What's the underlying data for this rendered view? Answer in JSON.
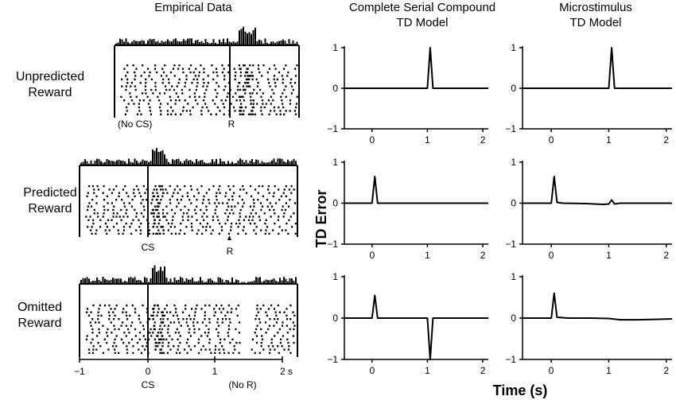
{
  "headers": {
    "empirical": "Empirical Data",
    "csc_line1": "Complete Serial Compound",
    "csc_line2": "TD Model",
    "micro_line1": "Microstimulus",
    "micro_line2": "TD Model"
  },
  "row_labels": [
    {
      "line1": "Unpredicted",
      "line2": "Reward"
    },
    {
      "line1": "Predicted",
      "line2": "Reward"
    },
    {
      "line1": "Omitted",
      "line2": "Reward"
    }
  ],
  "raster_markers": {
    "row1": {
      "left": "(No CS)",
      "right": "R"
    },
    "row2": {
      "left": "CS",
      "right": "R"
    },
    "row3": {
      "left": "CS",
      "right": "(No R)"
    }
  },
  "empirical_axis_ticks": [
    "−1",
    "0",
    "1",
    "2 s"
  ],
  "ylabel": "TD Error",
  "xlabel": "Time (s)",
  "chart_data": [
    {
      "type": "line",
      "title": "",
      "panel": "CSC unpredicted reward",
      "xlabel": "",
      "ylabel": "",
      "xlim": [
        -0.5,
        2.1
      ],
      "ylim": [
        -1,
        1
      ],
      "xticks": [
        "0",
        "1",
        "2"
      ],
      "yticks": [
        "1",
        "0",
        "−1"
      ],
      "grid": false,
      "x": [
        -0.5,
        1.0,
        1.05,
        1.1,
        2.1
      ],
      "y": [
        0,
        0,
        1,
        0,
        0
      ]
    },
    {
      "type": "line",
      "title": "",
      "panel": "Microstimulus unpredicted reward",
      "xlabel": "",
      "ylabel": "",
      "xlim": [
        -0.5,
        2.1
      ],
      "ylim": [
        -1,
        1
      ],
      "xticks": [
        "0",
        "1",
        "2"
      ],
      "yticks": [
        "1",
        "0",
        "−1"
      ],
      "grid": false,
      "x": [
        -0.5,
        1.0,
        1.05,
        1.1,
        2.1
      ],
      "y": [
        0,
        0,
        1,
        0,
        0
      ]
    },
    {
      "type": "line",
      "title": "",
      "panel": "CSC predicted reward",
      "xlabel": "",
      "ylabel": "",
      "xlim": [
        -0.5,
        2.1
      ],
      "ylim": [
        -1,
        1
      ],
      "xticks": [
        "0",
        "1",
        "2"
      ],
      "yticks": [
        "1",
        "0",
        "−1"
      ],
      "grid": false,
      "x": [
        -0.5,
        0.0,
        0.05,
        0.1,
        2.1
      ],
      "y": [
        0,
        0,
        0.65,
        0,
        0
      ]
    },
    {
      "type": "line",
      "title": "",
      "panel": "Microstimulus predicted reward",
      "xlabel": "",
      "ylabel": "",
      "xlim": [
        -0.5,
        2.1
      ],
      "ylim": [
        -1,
        1
      ],
      "xticks": [
        "0",
        "1",
        "2"
      ],
      "yticks": [
        "1",
        "0",
        "−1"
      ],
      "grid": false,
      "x": [
        -0.5,
        0.0,
        0.05,
        0.1,
        0.2,
        0.6,
        0.9,
        1.0,
        1.05,
        1.1,
        1.2,
        2.1
      ],
      "y": [
        0,
        0,
        0.65,
        0.02,
        0,
        -0.01,
        -0.03,
        -0.02,
        0.08,
        -0.02,
        0,
        0
      ]
    },
    {
      "type": "line",
      "title": "",
      "panel": "CSC omitted reward",
      "xlabel": "",
      "ylabel": "",
      "xlim": [
        -0.5,
        2.1
      ],
      "ylim": [
        -1,
        1
      ],
      "xticks": [
        "0",
        "1",
        "2"
      ],
      "yticks": [
        "1",
        "0",
        "−1"
      ],
      "grid": false,
      "x": [
        -0.5,
        0.0,
        0.05,
        0.1,
        1.0,
        1.05,
        1.1,
        2.1
      ],
      "y": [
        0,
        0,
        0.55,
        0,
        0,
        -1,
        0,
        0
      ]
    },
    {
      "type": "line",
      "title": "",
      "panel": "Microstimulus omitted reward",
      "xlabel": "",
      "ylabel": "",
      "xlim": [
        -0.5,
        2.1
      ],
      "ylim": [
        -1,
        1
      ],
      "xticks": [
        "0",
        "1",
        "2"
      ],
      "yticks": [
        "1",
        "0",
        "−1"
      ],
      "grid": false,
      "x": [
        -0.5,
        0.0,
        0.05,
        0.1,
        0.3,
        0.7,
        1.0,
        1.2,
        1.5,
        1.8,
        2.1
      ],
      "y": [
        0,
        0,
        0.6,
        0.02,
        0,
        0,
        -0.01,
        -0.04,
        -0.04,
        -0.03,
        -0.02
      ]
    }
  ]
}
